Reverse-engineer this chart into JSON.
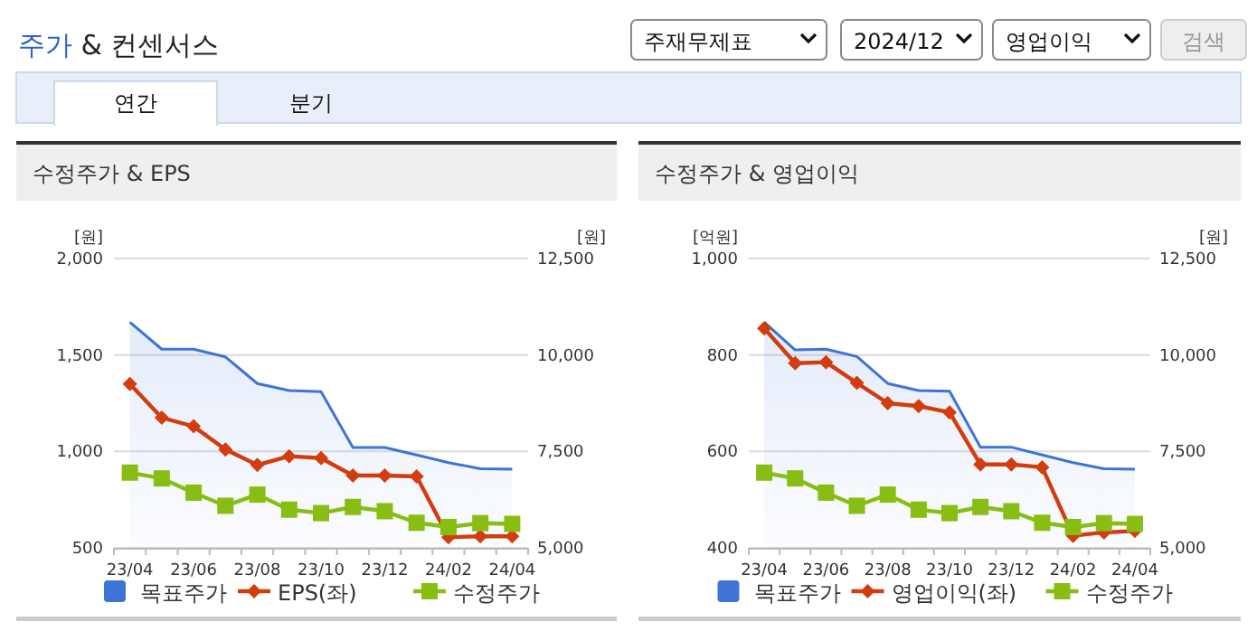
{
  "chart_data": [
    {
      "type": "other",
      "title": "주가 & 컨센서스",
      "annotations": [
        "주재무제표",
        "2024/12",
        "영업이익",
        "검색",
        "연간",
        "분기"
      ]
    },
    {
      "type": "line",
      "title": "수정주가 & EPS",
      "ylabel": "[원]",
      "y2label": "[원]",
      "categories": [
        "23/04",
        null,
        "23/06",
        null,
        "23/08",
        null,
        "23/10",
        null,
        "23/12",
        null,
        "24/02",
        null,
        "24/04"
      ],
      "series": [
        {
          "name": "목표주가",
          "type": "area",
          "axis": "y2",
          "color": "#3d74d6",
          "values": [
            10850,
            10150,
            10150,
            9950,
            9260,
            9080,
            9050,
            7600,
            7600,
            7410,
            7210,
            7050,
            7040
          ]
        },
        {
          "name": "EPS(좌)",
          "type": "line",
          "color": "#d33c0e",
          "marker": "diamond",
          "values": [
            1350,
            1175,
            1130,
            1010,
            930,
            975,
            965,
            875,
            875,
            870,
            555,
            560,
            560
          ]
        },
        {
          "name": "수정주가",
          "type": "line",
          "axis": "y2",
          "color": "#88be14",
          "marker": "square",
          "values": [
            6950,
            6800,
            6430,
            6090,
            6380,
            5990,
            5900,
            6060,
            5950,
            5650,
            5540,
            5640,
            5620
          ]
        }
      ],
      "ylim": [
        500,
        2000
      ],
      "yticks": [
        {
          "value": 500,
          "label": "500"
        },
        {
          "value": 1000,
          "label": "1,000"
        },
        {
          "value": 1500,
          "label": "1,500"
        },
        {
          "value": 2000,
          "label": "2,000"
        }
      ],
      "y2lim": [
        5000,
        12500
      ],
      "y2ticks": [
        {
          "value": 5000,
          "label": "5,000"
        },
        {
          "value": 7500,
          "label": "7,500"
        },
        {
          "value": 10000,
          "label": "10,000"
        },
        {
          "value": 12500,
          "label": "12,500"
        }
      ],
      "grid": "y",
      "legend": "bottom",
      "line_style": "solid"
    },
    {
      "type": "line",
      "title": "수정주가 & 영업이익",
      "ylabel": "[억원]",
      "y2label": "[원]",
      "categories": [
        "23/04",
        null,
        "23/06",
        null,
        "23/08",
        null,
        "23/10",
        null,
        "23/12",
        null,
        "24/02",
        null,
        "24/04"
      ],
      "series": [
        {
          "name": "목표주가",
          "type": "area",
          "axis": "y2",
          "color": "#3d74d6",
          "values": [
            10850,
            10130,
            10150,
            9960,
            9260,
            9080,
            9060,
            7610,
            7610,
            7410,
            7210,
            7050,
            7040
          ]
        },
        {
          "name": "영업이익(좌)",
          "type": "line",
          "color": "#d33c0e",
          "marker": "diamond",
          "values": [
            855,
            783,
            785,
            742,
            700,
            694,
            681,
            573,
            573,
            567,
            425,
            432,
            435
          ]
        },
        {
          "name": "수정주가",
          "type": "line",
          "axis": "y2",
          "color": "#88be14",
          "marker": "square",
          "values": [
            6950,
            6800,
            6430,
            6090,
            6380,
            5990,
            5900,
            6060,
            5950,
            5650,
            5540,
            5640,
            5620
          ]
        }
      ],
      "ylim": [
        400,
        1000
      ],
      "yticks": [
        {
          "value": 400,
          "label": "400"
        },
        {
          "value": 600,
          "label": "600"
        },
        {
          "value": 800,
          "label": "800"
        },
        {
          "value": 1000,
          "label": "1,000"
        }
      ],
      "y2lim": [
        5000,
        12500
      ],
      "y2ticks": [
        {
          "value": 5000,
          "label": "5,000"
        },
        {
          "value": 7500,
          "label": "7,500"
        },
        {
          "value": 10000,
          "label": "10,000"
        },
        {
          "value": 12500,
          "label": "12,500"
        }
      ],
      "grid": "y",
      "legend": "bottom",
      "line_style": "solid"
    }
  ]
}
